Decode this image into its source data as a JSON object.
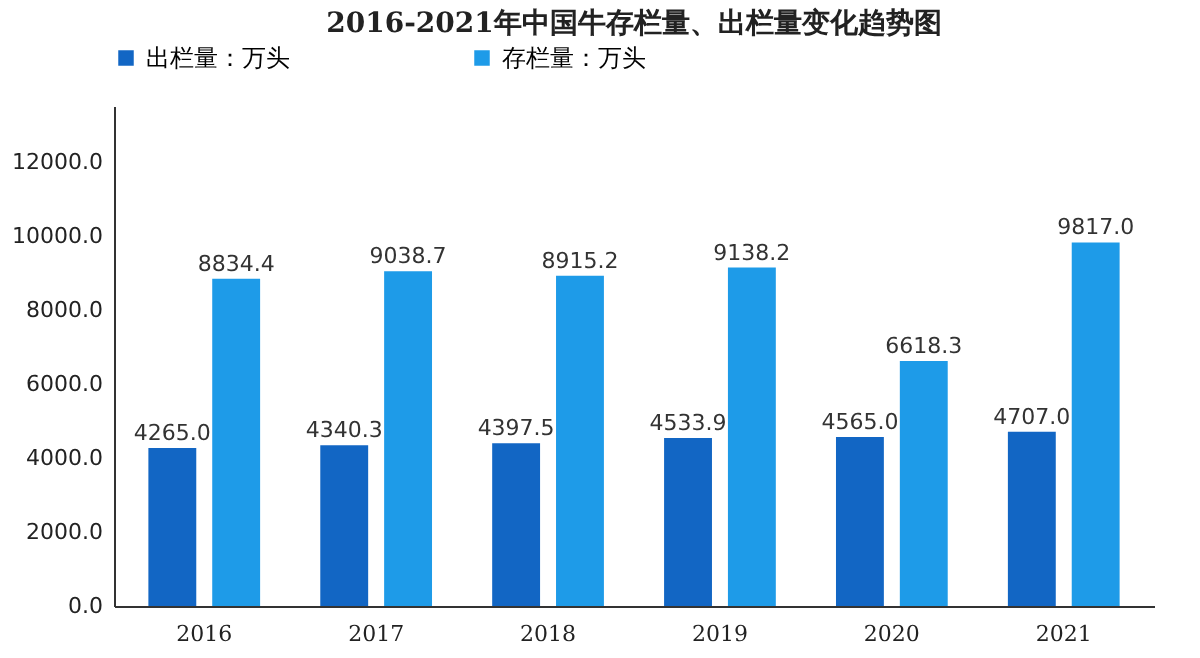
{
  "chart_data": {
    "type": "bar",
    "title": "2016-2021年中国牛存栏量、出栏量变化趋势图",
    "categories": [
      "2016",
      "2017",
      "2018",
      "2019",
      "2020",
      "2021"
    ],
    "series": [
      {
        "name": "出栏量：万头",
        "color": "#1266c4",
        "values": [
          4265,
          4340.3,
          4397.5,
          4533.9,
          4565,
          4707
        ],
        "value_labels": [
          "4265.0",
          "4340.3",
          "4397.5",
          "4533.9",
          "4565.0",
          "4707.0"
        ]
      },
      {
        "name": "存栏量：万头",
        "color": "#1e9be8",
        "values": [
          8834.4,
          9038.7,
          8915.2,
          9138.2,
          6618.3,
          9817
        ],
        "value_labels": [
          "8834.4",
          "9038.7",
          "8915.2",
          "9138.2",
          "6618.3",
          "9817.0"
        ]
      }
    ],
    "ylim": [
      0,
      13500
    ],
    "yticks": [
      {
        "value": 0,
        "label": "0.0"
      },
      {
        "value": 2000,
        "label": "2000.0"
      },
      {
        "value": 4000,
        "label": "4000.0"
      },
      {
        "value": 6000,
        "label": "6000.0"
      },
      {
        "value": 8000,
        "label": "8000.0"
      },
      {
        "value": 10000,
        "label": "10000.0"
      },
      {
        "value": 12000,
        "label": "12000.0"
      }
    ],
    "legend": "top",
    "grid": false
  }
}
